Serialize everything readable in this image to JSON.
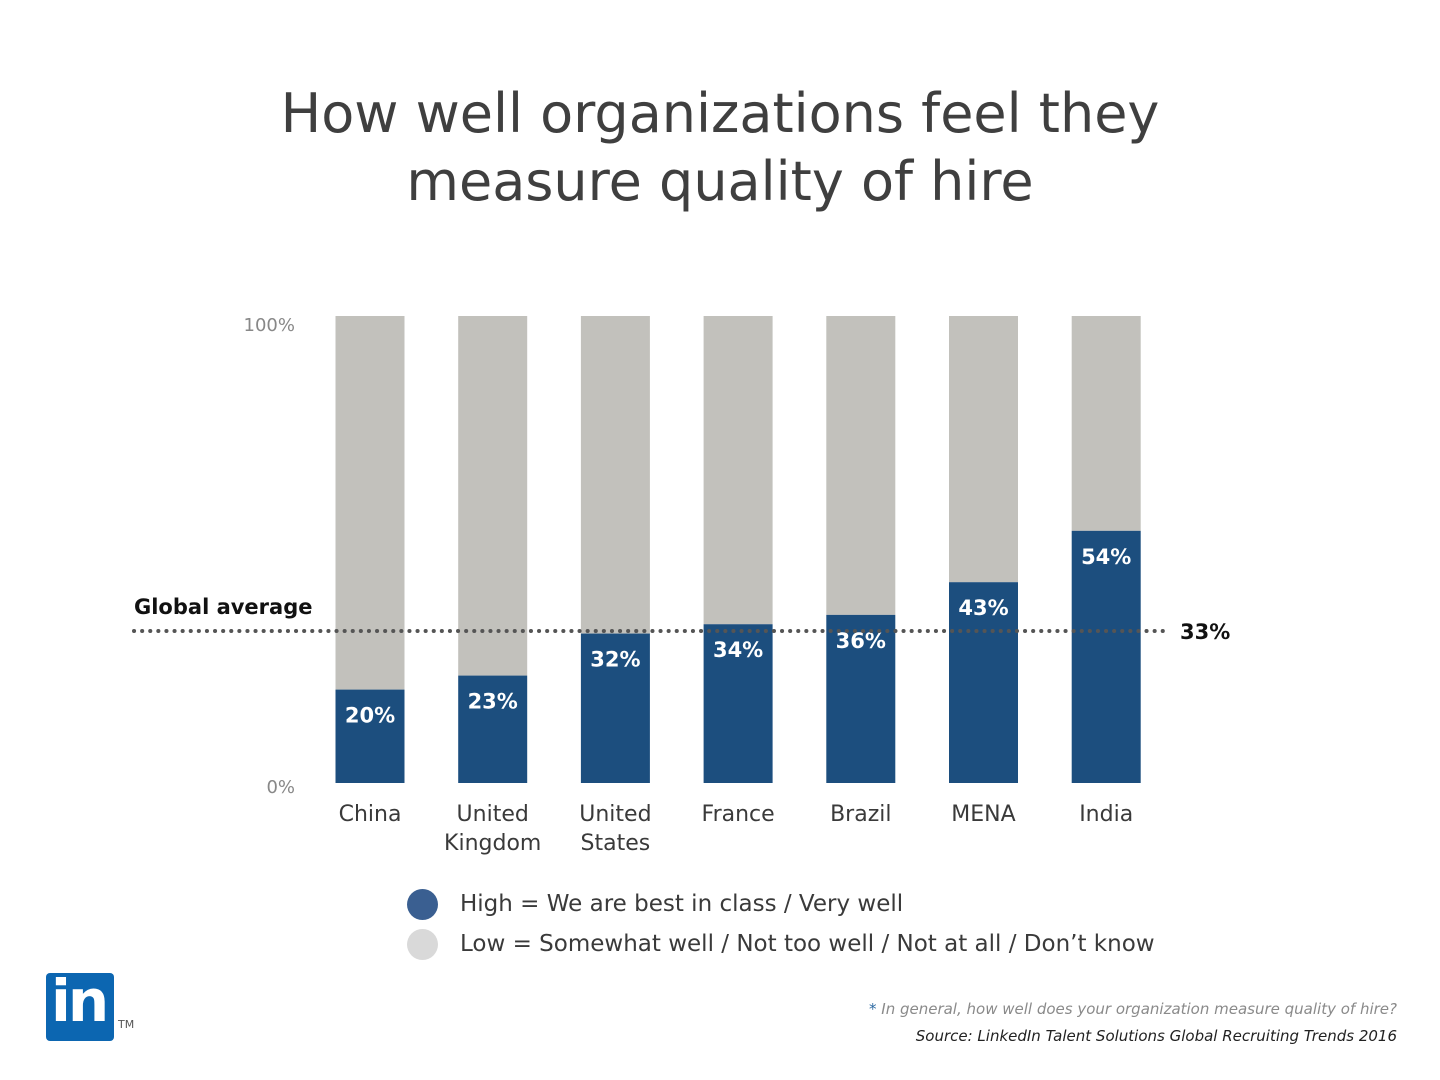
{
  "colors": {
    "high": "#1c4e7e",
    "low": "#c2c1bc",
    "avg_line": "#555555",
    "high_dot": "#3a5f91",
    "low_dot": "#d9d9d9"
  },
  "title": [
    "How well organizations feel they",
    "measure quality of hire"
  ],
  "chart_data": {
    "type": "bar",
    "stacked": true,
    "categories": [
      [
        "China"
      ],
      [
        "United",
        "Kingdom"
      ],
      [
        "United",
        "States"
      ],
      [
        "France"
      ],
      [
        "Brazil"
      ],
      [
        "MENA"
      ],
      [
        "India"
      ]
    ],
    "series": [
      {
        "name": "High = We are best in class / Very well",
        "values": [
          20,
          23,
          32,
          34,
          36,
          43,
          54
        ],
        "labels": [
          "20%",
          "23%",
          "32%",
          "34%",
          "36%",
          "43%",
          "54%"
        ]
      },
      {
        "name": "Low = Somewhat well / Not too well / Not at all / Don’t know",
        "values": [
          80,
          77,
          68,
          66,
          64,
          57,
          46
        ]
      }
    ],
    "ylim": [
      0,
      100
    ],
    "yticks": [
      "0%",
      "100%"
    ],
    "reference_line": {
      "label": "Global average",
      "value": 33,
      "value_label": "33%",
      "style": "dotted"
    }
  },
  "legend": [
    {
      "label": "High = We are best in class / Very well",
      "icon": "high-dot-icon"
    },
    {
      "label": "Low = Somewhat well / Not too well / Not at all / Don’t know",
      "icon": "low-dot-icon"
    }
  ],
  "logo": {
    "text": "in",
    "tm": "TM"
  },
  "footnote": {
    "star": "*",
    "question": "In general, how well does your organization measure quality of hire?",
    "source": "Source: LinkedIn Talent Solutions Global Recruiting Trends 2016"
  }
}
